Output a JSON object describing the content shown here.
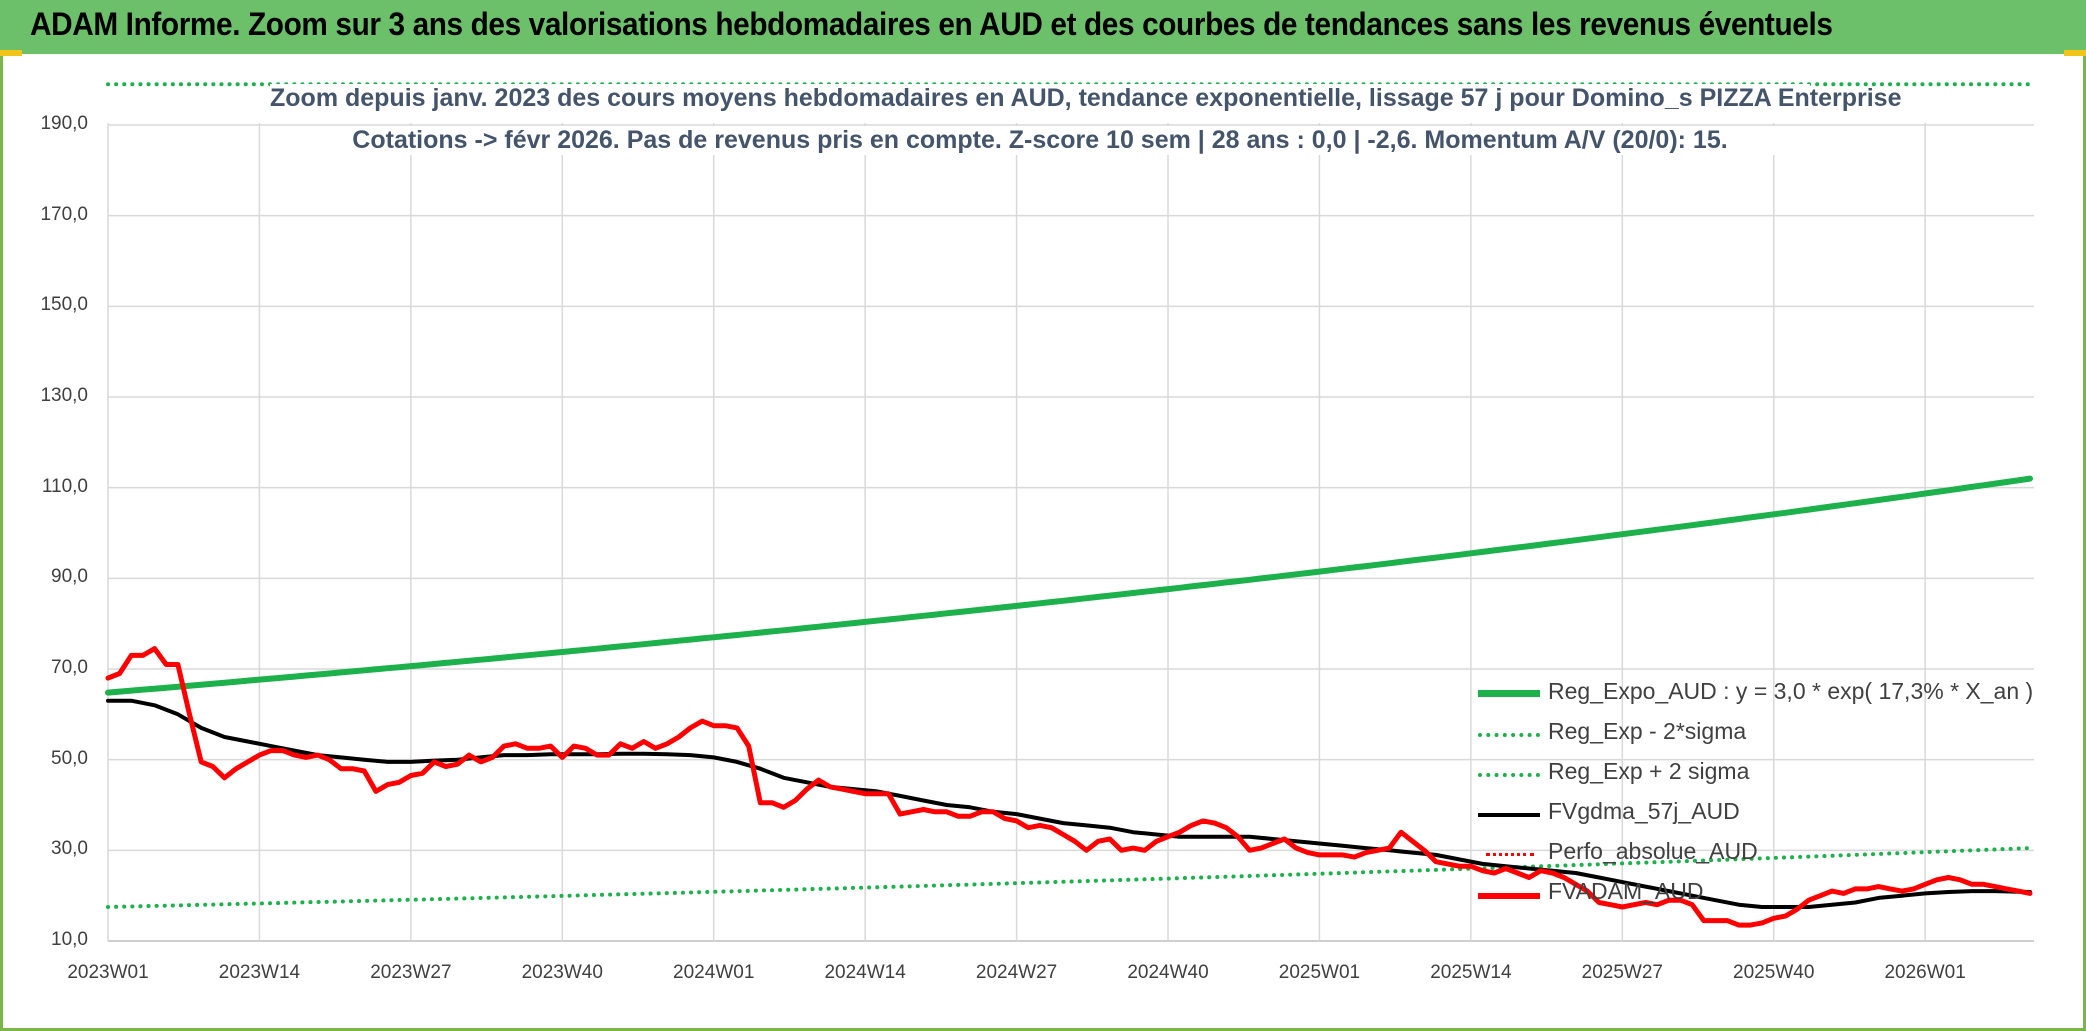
{
  "header": {
    "title": "ADAM Informe. Zoom sur 3 ans des valorisations hebdomadaires en AUD et des courbes de tendances sans les revenus éventuels"
  },
  "colors": {
    "header_bg": "#6cc06a",
    "regexpo": "#1db14b",
    "sigma": "#1db14b",
    "gdma": "#000000",
    "perfo": "#ff0000",
    "price": "#ff0000",
    "grid": "#d9d9d9",
    "text": "#404040",
    "subtitle": "#44546a"
  },
  "chart_data": {
    "type": "line",
    "title": "Zoom depuis janv. 2023 des cours moyens hebdomadaires en AUD, tendance exponentielle, lissage 57 j pour Domino_s PIZZA Enterprise",
    "subtitle": "Cotations -> févr 2026. Pas de revenus pris en compte. Z-score 10 sem | 28 ans : 0,0 | -2,6. Momentum A/V (20/0): 15.",
    "ylim": [
      10,
      200
    ],
    "y_ticks": [
      "10,0",
      "30,0",
      "50,0",
      "70,0",
      "90,0",
      "110,0",
      "130,0",
      "150,0",
      "170,0",
      "190,0"
    ],
    "x_ticks": [
      "2023W01",
      "2023W14",
      "2023W27",
      "2023W40",
      "2024W01",
      "2024W14",
      "2024W27",
      "2024W40",
      "2025W01",
      "2025W14",
      "2025W27",
      "2025W40",
      "2026W01"
    ],
    "grid": true,
    "legend_position": "right",
    "series": [
      {
        "name": "Reg_Expo_AUD : y = 3,0 * exp( 17,3% *  X_an )",
        "style": "solid-thick",
        "color": "#1db14b",
        "points": [
          [
            0,
            64.8
          ],
          [
            165,
            112.0
          ]
        ]
      },
      {
        "name": "Reg_Exp - 2*sigma",
        "style": "dotted",
        "color": "#1db14b",
        "points": [
          [
            0,
            17.5
          ],
          [
            165,
            30.5
          ]
        ]
      },
      {
        "name": "Reg_Exp + 2 sigma",
        "style": "dotted",
        "color": "#1db14b",
        "points": [
          [
            0,
            199.0
          ],
          [
            165,
            199.0
          ]
        ]
      },
      {
        "name": "FVgdma_57j_AUD",
        "style": "solid",
        "color": "#000000",
        "points": [
          [
            0,
            63
          ],
          [
            2,
            63
          ],
          [
            4,
            62
          ],
          [
            6,
            60
          ],
          [
            8,
            57
          ],
          [
            10,
            55
          ],
          [
            12,
            54
          ],
          [
            14,
            53
          ],
          [
            16,
            52
          ],
          [
            18,
            51
          ],
          [
            20,
            50.5
          ],
          [
            22,
            50
          ],
          [
            24,
            49.5
          ],
          [
            26,
            49.5
          ],
          [
            28,
            49.8
          ],
          [
            30,
            50
          ],
          [
            32,
            50.5
          ],
          [
            34,
            51
          ],
          [
            36,
            51
          ],
          [
            38,
            51.2
          ],
          [
            40,
            51.2
          ],
          [
            42,
            51.2
          ],
          [
            44,
            51.3
          ],
          [
            46,
            51.3
          ],
          [
            48,
            51.2
          ],
          [
            50,
            51
          ],
          [
            52,
            50.5
          ],
          [
            54,
            49.5
          ],
          [
            56,
            48
          ],
          [
            58,
            46
          ],
          [
            60,
            45
          ],
          [
            62,
            44
          ],
          [
            64,
            43.5
          ],
          [
            66,
            43
          ],
          [
            68,
            42
          ],
          [
            70,
            41
          ],
          [
            72,
            40
          ],
          [
            74,
            39.5
          ],
          [
            76,
            38.5
          ],
          [
            78,
            38
          ],
          [
            80,
            37
          ],
          [
            82,
            36
          ],
          [
            84,
            35.5
          ],
          [
            86,
            35
          ],
          [
            88,
            34
          ],
          [
            90,
            33.5
          ],
          [
            92,
            33
          ],
          [
            94,
            33
          ],
          [
            96,
            33
          ],
          [
            98,
            33
          ],
          [
            100,
            32.5
          ],
          [
            102,
            32
          ],
          [
            104,
            31.5
          ],
          [
            106,
            31
          ],
          [
            108,
            30.5
          ],
          [
            110,
            30
          ],
          [
            112,
            29.5
          ],
          [
            114,
            29
          ],
          [
            116,
            28
          ],
          [
            118,
            27
          ],
          [
            120,
            26.5
          ],
          [
            122,
            26
          ],
          [
            124,
            25.5
          ],
          [
            126,
            25
          ],
          [
            128,
            24
          ],
          [
            130,
            23
          ],
          [
            132,
            22
          ],
          [
            134,
            21
          ],
          [
            136,
            20
          ],
          [
            138,
            19
          ],
          [
            140,
            18
          ],
          [
            142,
            17.5
          ],
          [
            144,
            17.5
          ],
          [
            146,
            17.5
          ],
          [
            148,
            18
          ],
          [
            150,
            18.5
          ],
          [
            152,
            19.5
          ],
          [
            154,
            20
          ],
          [
            156,
            20.5
          ],
          [
            158,
            20.8
          ],
          [
            160,
            21
          ],
          [
            162,
            21
          ],
          [
            165,
            20.8
          ]
        ]
      },
      {
        "name": "Perfo_absolue_AUD",
        "style": "dotted",
        "color": "#ff0000",
        "points": []
      },
      {
        "name": "FVADAM_AUD",
        "style": "solid-thick",
        "color": "#ff0000",
        "points": [
          [
            0,
            68
          ],
          [
            1,
            69
          ],
          [
            2,
            73
          ],
          [
            3,
            73
          ],
          [
            4,
            74.5
          ],
          [
            5,
            71
          ],
          [
            6,
            71
          ],
          [
            7,
            60
          ],
          [
            8,
            49.5
          ],
          [
            9,
            48.5
          ],
          [
            10,
            46
          ],
          [
            11,
            48
          ],
          [
            12,
            49.5
          ],
          [
            13,
            51
          ],
          [
            14,
            52
          ],
          [
            15,
            52
          ],
          [
            16,
            51
          ],
          [
            17,
            50.5
          ],
          [
            18,
            51
          ],
          [
            19,
            50
          ],
          [
            20,
            48
          ],
          [
            21,
            48
          ],
          [
            22,
            47.5
          ],
          [
            23,
            43
          ],
          [
            24,
            44.5
          ],
          [
            25,
            45
          ],
          [
            26,
            46.5
          ],
          [
            27,
            47
          ],
          [
            28,
            49.5
          ],
          [
            29,
            48.5
          ],
          [
            30,
            49
          ],
          [
            31,
            51
          ],
          [
            32,
            49.5
          ],
          [
            33,
            50.5
          ],
          [
            34,
            53
          ],
          [
            35,
            53.5
          ],
          [
            36,
            52.5
          ],
          [
            37,
            52.5
          ],
          [
            38,
            53
          ],
          [
            39,
            50.5
          ],
          [
            40,
            53
          ],
          [
            41,
            52.5
          ],
          [
            42,
            51
          ],
          [
            43,
            51
          ],
          [
            44,
            53.5
          ],
          [
            45,
            52.5
          ],
          [
            46,
            54
          ],
          [
            47,
            52.5
          ],
          [
            48,
            53.5
          ],
          [
            49,
            55
          ],
          [
            50,
            57
          ],
          [
            51,
            58.5
          ],
          [
            52,
            57.5
          ],
          [
            53,
            57.5
          ],
          [
            54,
            57
          ],
          [
            55,
            53
          ],
          [
            56,
            40.5
          ],
          [
            57,
            40.5
          ],
          [
            58,
            39.5
          ],
          [
            59,
            41
          ],
          [
            60,
            43.5
          ],
          [
            61,
            45.5
          ],
          [
            62,
            44
          ],
          [
            63,
            43.5
          ],
          [
            64,
            43
          ],
          [
            65,
            42.5
          ],
          [
            66,
            42.5
          ],
          [
            67,
            42.5
          ],
          [
            68,
            38
          ],
          [
            69,
            38.5
          ],
          [
            70,
            39
          ],
          [
            71,
            38.5
          ],
          [
            72,
            38.5
          ],
          [
            73,
            37.5
          ],
          [
            74,
            37.5
          ],
          [
            75,
            38.5
          ],
          [
            76,
            38.5
          ],
          [
            77,
            37
          ],
          [
            78,
            36.5
          ],
          [
            79,
            35
          ],
          [
            80,
            35.5
          ],
          [
            81,
            35
          ],
          [
            82,
            33.5
          ],
          [
            83,
            32
          ],
          [
            84,
            30
          ],
          [
            85,
            32
          ],
          [
            86,
            32.5
          ],
          [
            87,
            30
          ],
          [
            88,
            30.5
          ],
          [
            89,
            30
          ],
          [
            90,
            32
          ],
          [
            91,
            33
          ],
          [
            92,
            34
          ],
          [
            93,
            35.5
          ],
          [
            94,
            36.5
          ],
          [
            95,
            36
          ],
          [
            96,
            35
          ],
          [
            97,
            33
          ],
          [
            98,
            30
          ],
          [
            99,
            30.5
          ],
          [
            100,
            31.5
          ],
          [
            101,
            32.5
          ],
          [
            102,
            30.5
          ],
          [
            103,
            29.5
          ],
          [
            104,
            29
          ],
          [
            105,
            29
          ],
          [
            106,
            29
          ],
          [
            107,
            28.5
          ],
          [
            108,
            29.5
          ],
          [
            109,
            30
          ],
          [
            110,
            30.5
          ],
          [
            111,
            34
          ],
          [
            112,
            32
          ],
          [
            113,
            30
          ],
          [
            114,
            27.5
          ],
          [
            115,
            27
          ],
          [
            116,
            26.5
          ],
          [
            117,
            26.5
          ],
          [
            118,
            25.5
          ],
          [
            119,
            25
          ],
          [
            120,
            26
          ],
          [
            121,
            25
          ],
          [
            122,
            24
          ],
          [
            123,
            25.5
          ],
          [
            124,
            25
          ],
          [
            125,
            24
          ],
          [
            126,
            22.5
          ],
          [
            127,
            21
          ],
          [
            128,
            18.5
          ],
          [
            129,
            18
          ],
          [
            130,
            17.5
          ],
          [
            131,
            18
          ],
          [
            132,
            18.5
          ],
          [
            133,
            18
          ],
          [
            134,
            19
          ],
          [
            135,
            19
          ],
          [
            136,
            18
          ],
          [
            137,
            14.5
          ],
          [
            138,
            14.5
          ],
          [
            139,
            14.5
          ],
          [
            140,
            13.5
          ],
          [
            141,
            13.5
          ],
          [
            142,
            14
          ],
          [
            143,
            15
          ],
          [
            144,
            15.5
          ],
          [
            145,
            17
          ],
          [
            146,
            19
          ],
          [
            147,
            20
          ],
          [
            148,
            21
          ],
          [
            149,
            20.5
          ],
          [
            150,
            21.5
          ],
          [
            151,
            21.5
          ],
          [
            152,
            22
          ],
          [
            153,
            21.5
          ],
          [
            154,
            21
          ],
          [
            155,
            21.5
          ],
          [
            156,
            22.5
          ],
          [
            157,
            23.5
          ],
          [
            158,
            24
          ],
          [
            159,
            23.5
          ],
          [
            160,
            22.5
          ],
          [
            161,
            22.5
          ],
          [
            162,
            22
          ],
          [
            163,
            21.5
          ],
          [
            164,
            21
          ],
          [
            165,
            20.5
          ]
        ]
      }
    ]
  }
}
